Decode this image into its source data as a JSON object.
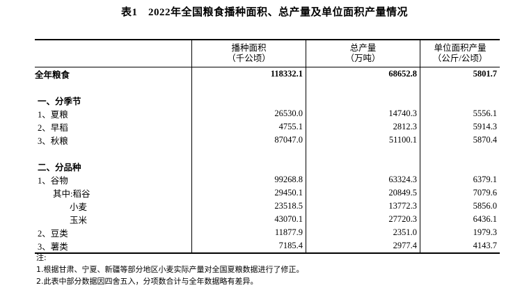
{
  "title": "表1　2022年全国粮食播种面积、总产量及单位面积产量情况",
  "headers": [
    {
      "name": "播种面积",
      "unit": "（千公顷）"
    },
    {
      "name": "总产量",
      "unit": "（万吨）"
    },
    {
      "name": "单位面积产量",
      "unit": "（公斤/公顷）"
    }
  ],
  "rows": [
    {
      "label": "全年粮食",
      "area": "118332.1",
      "output": "68652.8",
      "yield": "5801.7"
    },
    {
      "label": "",
      "area": "",
      "output": "",
      "yield": ""
    },
    {
      "label": "一、分季节",
      "area": "",
      "output": "",
      "yield": ""
    },
    {
      "label": "1、夏粮",
      "area": "26530.0",
      "output": "14740.3",
      "yield": "5556.1"
    },
    {
      "label": "2、早稻",
      "area": "4755.1",
      "output": "2812.3",
      "yield": "5914.3"
    },
    {
      "label": "3、秋粮",
      "area": "87047.0",
      "output": "51100.1",
      "yield": "5870.4"
    },
    {
      "label": "",
      "area": "",
      "output": "",
      "yield": ""
    },
    {
      "label": "二、分品种",
      "area": "",
      "output": "",
      "yield": ""
    },
    {
      "label": "1、谷物",
      "area": "99268.8",
      "output": "63324.3",
      "yield": "6379.1"
    },
    {
      "label": "其中:稻谷",
      "area": "29450.1",
      "output": "20849.5",
      "yield": "7079.6"
    },
    {
      "label": "小麦",
      "area": "23518.5",
      "output": "13772.3",
      "yield": "5856.0"
    },
    {
      "label": "玉米",
      "area": "43070.1",
      "output": "27720.3",
      "yield": "6436.1"
    },
    {
      "label": "2、豆类",
      "area": "11877.9",
      "output": "2351.0",
      "yield": "1979.3"
    },
    {
      "label": "3、薯类",
      "area": "7185.4",
      "output": "2977.4",
      "yield": "4143.7"
    }
  ],
  "notes": {
    "heading": "注:",
    "items": [
      "1.根据甘肃、宁夏、新疆等部分地区小麦实际产量对全国夏粮数据进行了修正。",
      "2.此表中部分数据因四舍五入，分项数合计与全年数据略有差异。"
    ]
  }
}
